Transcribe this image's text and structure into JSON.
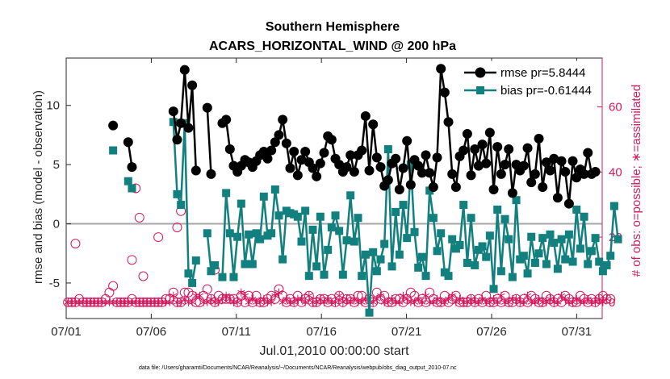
{
  "chart_data": {
    "type": "line",
    "title": [
      "Southern Hemisphere",
      "ACARS_HORIZONTAL_WIND @ 200 hPa"
    ],
    "xlabel": "Jul.01,2010 00:00:00 start",
    "ylabel": "rmse and bias (model - observation)",
    "ylabel_right": "# of obs: o=possible; ∗=assimilated",
    "footnote": "data file: /Users/gharamti/Documents/NCAR/Reanalysis/~/Documents/NCAR/Reanalysis/webpub/obs_diag_output_2010-07.nc",
    "xlim": [
      0,
      31.5
    ],
    "ylim": [
      -8,
      14
    ],
    "ylim_right": [
      -5,
      75
    ],
    "x_ticks": [
      0,
      5,
      10,
      15,
      20,
      25,
      30
    ],
    "x_tick_labels": [
      "07/01",
      "07/06",
      "07/11",
      "07/16",
      "07/21",
      "07/26",
      "07/31"
    ],
    "y_ticks": [
      -5,
      0,
      5,
      10
    ],
    "y_tick_labels": [
      "-5",
      "0",
      "5",
      "10"
    ],
    "y_right_ticks": [
      0,
      20,
      40,
      60
    ],
    "y_right_tick_labels": [
      "0",
      "20",
      "40",
      "60"
    ],
    "zero_line": 0,
    "colors": {
      "rmse": "#000000",
      "bias": "#12807e",
      "obs": "#d6185c",
      "zero": "#a6a6a6",
      "axis": "#262626"
    },
    "series": [
      {
        "name": "rmse",
        "legend": "rmse pr=5.8444",
        "marker": "circle",
        "values": [
          null,
          null,
          null,
          null,
          null,
          null,
          null,
          null,
          null,
          null,
          null,
          null,
          8.3,
          null,
          null,
          null,
          6.9,
          4.8,
          null,
          null,
          null,
          null,
          null,
          null,
          null,
          null,
          null,
          null,
          9.5,
          7.1,
          8.5,
          13.0,
          8.1,
          11.7,
          4.5,
          null,
          null,
          9.8,
          4.2,
          null,
          null,
          8.5,
          8.8,
          6.3,
          4.9,
          4.4,
          4.9,
          5.4,
          5.2,
          4.8,
          5.3,
          5.8,
          6.1,
          5.5,
          6.2,
          6.9,
          7.5,
          8.8,
          6.8,
          4.7,
          6.1,
          4.1,
          5.4,
          6.1,
          5.2,
          4.7,
          4.0,
          5.1,
          6.0,
          7.4,
          7.1,
          5.5,
          5.0,
          4.4,
          4.8,
          5.8,
          4.4,
          5.8,
          6.2,
          9.1,
          4.5,
          8.4,
          5.6,
          4.8,
          3.2,
          3.7,
          5.1,
          5.5,
          2.9,
          4.7,
          7.0,
          3.3,
          5.4,
          4.9,
          4.3,
          5.8,
          4.3,
          3.1,
          5.6,
          13.1,
          11.1,
          8.6,
          4.2,
          3.1,
          5.7,
          6.2,
          7.6,
          4.1,
          6.3,
          4.9,
          6.7,
          5.1,
          7.7,
          2.9,
          6.5,
          4.2,
          5.0,
          6.3,
          2.6,
          5.0,
          4.5,
          4.9,
          6.4,
          3.5,
          4.2,
          7.2,
          3.1,
          5.2,
          4.5,
          5.5,
          2.2,
          5.3,
          4.4,
          1.7,
          5.3,
          3.9,
          4.6,
          4.2,
          6.0,
          4.2,
          4.4
        ]
      },
      {
        "name": "bias",
        "legend": "bias pr=-0.61444",
        "marker": "square",
        "values": [
          null,
          null,
          null,
          null,
          null,
          null,
          null,
          null,
          null,
          null,
          null,
          null,
          6.2,
          null,
          null,
          null,
          3.6,
          3.0,
          null,
          null,
          null,
          null,
          null,
          null,
          null,
          null,
          null,
          null,
          8.6,
          2.5,
          1.6,
          8.5,
          -4.2,
          -5.0,
          -3.1,
          null,
          null,
          -0.8,
          -4.0,
          -3.5,
          null,
          -4.5,
          2.6,
          -0.8,
          -4.5,
          -1.1,
          1.7,
          -3.4,
          -0.9,
          -3.4,
          -0.8,
          -1.3,
          2.3,
          -1.0,
          -0.8,
          2.9,
          0.7,
          -3.0,
          1.1,
          0.9,
          0.8,
          0.6,
          -1.5,
          1.1,
          -4.4,
          -0.5,
          -3.6,
          0.6,
          -4.3,
          -2.2,
          -0.3,
          0.7,
          -0.6,
          -4.3,
          -1.4,
          2.4,
          -1.5,
          0.5,
          -4.4,
          -2.6,
          -7.5,
          -2.4,
          -4.0,
          -3.0,
          -1.7,
          6.3,
          -3.6,
          1.0,
          -2.6,
          1.6,
          -1.2,
          5.0,
          -0.7,
          -3.7,
          -2.8,
          -4.4,
          2.8,
          0.5,
          -2.3,
          -0.8,
          -4.1,
          -4.4,
          -1.3,
          -2.1,
          -1.8,
          1.6,
          -3.3,
          0.5,
          -3.5,
          -2.2,
          -1.9,
          -2.8,
          -1.0,
          -5.5,
          1.2,
          -4.0,
          0.4,
          -1.3,
          -4.5,
          2.0,
          -3.0,
          -2.7,
          -4.2,
          -1.1,
          -3.3,
          -2.5,
          -1.2,
          -3.4,
          -0.9,
          -1.6,
          -3.8,
          -1.3,
          -3.0,
          -0.9,
          -3.2,
          1.2,
          -2.1,
          0.6,
          -3.4,
          -2.3,
          -1.2,
          -3.2,
          -4.0,
          -3.5,
          -2.7,
          1.5,
          -1.3
        ]
      },
      {
        "name": "possible",
        "legend": "o=possible",
        "marker": "open-circle",
        "axis": "right",
        "values": [
          0,
          0,
          0,
          1,
          0,
          0,
          0,
          0,
          0,
          0,
          1,
          3,
          5,
          0,
          0,
          0,
          0,
          1,
          0,
          0,
          0,
          0,
          0,
          0,
          0,
          0,
          1,
          1,
          3,
          0,
          0,
          3,
          3,
          2,
          0,
          0,
          2,
          4,
          1,
          0,
          2,
          1,
          1,
          1,
          1,
          0,
          2,
          0,
          2,
          0,
          2,
          0,
          0,
          1,
          2,
          1,
          4,
          2,
          0,
          1,
          0,
          2,
          0,
          1,
          2,
          0,
          0,
          1,
          1,
          0,
          1,
          0,
          2,
          0,
          1,
          1,
          0,
          2,
          2,
          0,
          1,
          0,
          3,
          1,
          2,
          0,
          0,
          1,
          1,
          0,
          1,
          3,
          2,
          0,
          1,
          0,
          3,
          1,
          0,
          0,
          2,
          0,
          1,
          2,
          0,
          0,
          0,
          1,
          0,
          1,
          0,
          2,
          0,
          0,
          1,
          0,
          2,
          0,
          0,
          1,
          0,
          1,
          0,
          2,
          1,
          0,
          0,
          2,
          1,
          0,
          1,
          0,
          2,
          1,
          0,
          0,
          2,
          1,
          0,
          1,
          0,
          1,
          2,
          1,
          1
        ]
      },
      {
        "name": "assimilated",
        "legend": "∗=assimilated",
        "marker": "asterisk",
        "axis": "right",
        "values": [
          0,
          0,
          0,
          0,
          0,
          0,
          0,
          0,
          0,
          0,
          0,
          0,
          0,
          0,
          0,
          0,
          0,
          0,
          0,
          0,
          0,
          0,
          0,
          0,
          0,
          0,
          0,
          0,
          2,
          0,
          0,
          1,
          0,
          0,
          2,
          2,
          0,
          0,
          1,
          0,
          0,
          1,
          2,
          1,
          0,
          0,
          3,
          2,
          0,
          1,
          0,
          0,
          1,
          0,
          0,
          2,
          3,
          0,
          1,
          0,
          0,
          1,
          1,
          0,
          2,
          0,
          0,
          1,
          0,
          1,
          0,
          0,
          2,
          0,
          1,
          0,
          1,
          0,
          0,
          1,
          0,
          0,
          1,
          2,
          0,
          0,
          1,
          0,
          0,
          2,
          1,
          0,
          0,
          1,
          0,
          2,
          0,
          0,
          1,
          0,
          0,
          1,
          2,
          0,
          1,
          0,
          0,
          1,
          0,
          0,
          1,
          0,
          0,
          1,
          0,
          2,
          0,
          0,
          1,
          1,
          0,
          0,
          2,
          0,
          0,
          1,
          0,
          0,
          1,
          0,
          0,
          2,
          1,
          0,
          0,
          1,
          0,
          0,
          1,
          0,
          0,
          1,
          0,
          1
        ]
      },
      {
        "name": "possible_upper",
        "marker": "open-circle",
        "axis": "right",
        "values": [
          null,
          null,
          18,
          null,
          null,
          null,
          null,
          null,
          null,
          null,
          null,
          null,
          null,
          null,
          null,
          null,
          null,
          13,
          35,
          26,
          8,
          null,
          null,
          null,
          20,
          null,
          null,
          null,
          null,
          23,
          28,
          null,
          null,
          null,
          null,
          null,
          null,
          null,
          null,
          10,
          null,
          null,
          null,
          null,
          null,
          null,
          null,
          null,
          null,
          null,
          null,
          null,
          null,
          null,
          null,
          null,
          null,
          null,
          null,
          null,
          null,
          null,
          null,
          null,
          null,
          null,
          null,
          null,
          null,
          null,
          null,
          null,
          null,
          null,
          null,
          null,
          null,
          null,
          null,
          null,
          null,
          null,
          null,
          null,
          null,
          null,
          null,
          null,
          null,
          null,
          null,
          null,
          null,
          null,
          null,
          null,
          null,
          null,
          null,
          null,
          null,
          null,
          null,
          null,
          null,
          null,
          null,
          null,
          null,
          null,
          null,
          null,
          null,
          null,
          null,
          null,
          null,
          null,
          null,
          null,
          null,
          null,
          null,
          null,
          null,
          null,
          null,
          null,
          null,
          null,
          null,
          null,
          null,
          null,
          null,
          null,
          null,
          null,
          null,
          null,
          null,
          null,
          null,
          null,
          null
        ]
      }
    ]
  }
}
